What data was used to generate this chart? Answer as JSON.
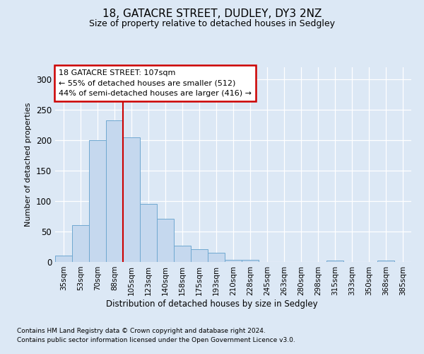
{
  "title1": "18, GATACRE STREET, DUDLEY, DY3 2NZ",
  "title2": "Size of property relative to detached houses in Sedgley",
  "xlabel": "Distribution of detached houses by size in Sedgley",
  "ylabel": "Number of detached properties",
  "categories": [
    "35sqm",
    "53sqm",
    "70sqm",
    "88sqm",
    "105sqm",
    "123sqm",
    "140sqm",
    "158sqm",
    "175sqm",
    "193sqm",
    "210sqm",
    "228sqm",
    "245sqm",
    "263sqm",
    "280sqm",
    "298sqm",
    "315sqm",
    "333sqm",
    "350sqm",
    "368sqm",
    "385sqm"
  ],
  "values": [
    10,
    60,
    200,
    233,
    205,
    95,
    71,
    27,
    21,
    15,
    4,
    4,
    0,
    0,
    0,
    0,
    2,
    0,
    0,
    2,
    0
  ],
  "bar_color": "#c5d8ee",
  "bar_edge_color": "#6fa8d0",
  "vline_x": 4.0,
  "vline_color": "#cc0000",
  "annotation_box_text": "18 GATACRE STREET: 107sqm\n← 55% of detached houses are smaller (512)\n44% of semi-detached houses are larger (416) →",
  "box_edge_color": "#cc0000",
  "ylim": [
    0,
    320
  ],
  "yticks": [
    0,
    50,
    100,
    150,
    200,
    250,
    300
  ],
  "footer1": "Contains HM Land Registry data © Crown copyright and database right 2024.",
  "footer2": "Contains public sector information licensed under the Open Government Licence v3.0.",
  "bg_color": "#dce8f5",
  "plot_bg_color": "#dce8f5"
}
